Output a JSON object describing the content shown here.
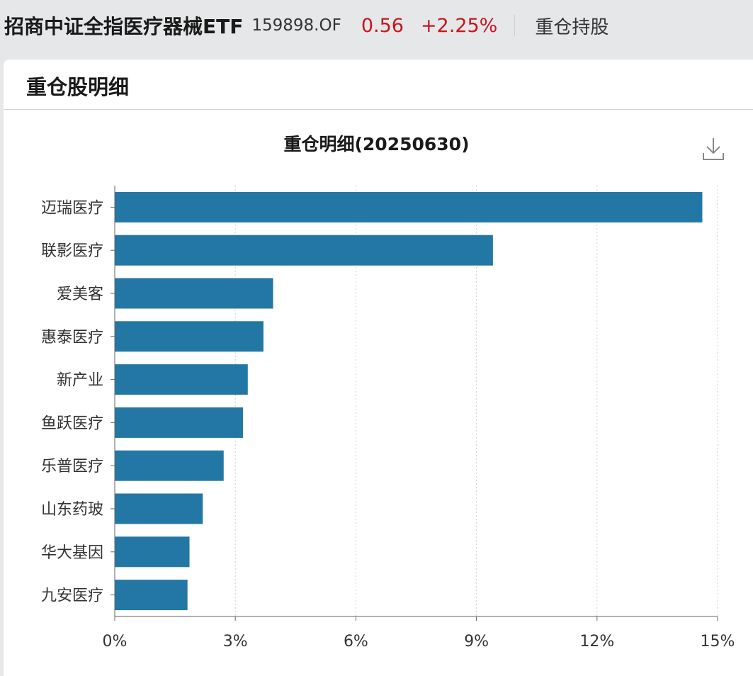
{
  "header": {
    "fund_name": "招商中证全指医疗器械ETF",
    "fund_code": "159898.OF",
    "nav": "0.56",
    "change": "+2.25%",
    "section_link": "重仓持股"
  },
  "panel": {
    "title": "重仓股明细"
  },
  "colors": {
    "bar": "#2377a4",
    "up": "#c8161d"
  },
  "icons": {
    "download": "download-icon"
  },
  "chart_data": {
    "type": "bar",
    "orientation": "horizontal",
    "title": "重仓明细(20250630)",
    "categories": [
      "迈瑞医疗",
      "联影医疗",
      "爱美客",
      "惠泰医疗",
      "新产业",
      "鱼跃医疗",
      "乐普医疗",
      "山东药玻",
      "华大基因",
      "九安医疗"
    ],
    "values": [
      14.62,
      9.41,
      3.94,
      3.7,
      3.31,
      3.19,
      2.71,
      2.19,
      1.86,
      1.81
    ],
    "xlabel": "",
    "ylabel": "",
    "xlim": [
      0,
      15
    ],
    "x_ticks": [
      "0%",
      "3%",
      "6%",
      "9%",
      "12%",
      "15%"
    ],
    "x_tick_values": [
      0,
      3,
      6,
      9,
      12,
      15
    ],
    "grid": "vertical dotted",
    "legend": "none"
  }
}
